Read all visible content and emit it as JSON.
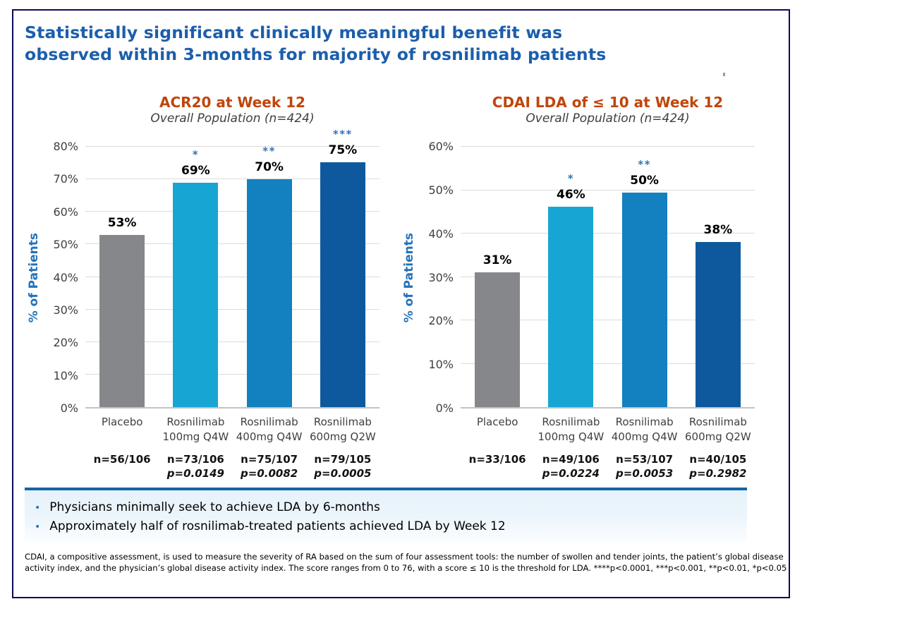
{
  "slide": {
    "title_lines": [
      "Statistically significant clinically meaningful benefit was",
      "observed within 3-months for majority of rosnilimab patients"
    ],
    "title_color": "#1B5EAC",
    "border_color": "#0B0B5C",
    "accent_divider_color": "#1565A3"
  },
  "chart_data": [
    {
      "type": "bar",
      "title": "ACR20 at Week 12",
      "subtitle": "Overall Population (n=424)",
      "ylabel": "% of Patients",
      "ylim": [
        0,
        80
      ],
      "ytick_step": 10,
      "grid": true,
      "categories": [
        "Placebo",
        "Rosnilimab\n100mg Q4W",
        "Rosnilimab\n400mg Q4W",
        "Rosnilimab\n600mg Q2W"
      ],
      "values": [
        53,
        69,
        70,
        75
      ],
      "value_labels": [
        "53%",
        "69%",
        "70%",
        "75%"
      ],
      "bar_pct_exact": [
        52.8,
        68.9,
        70.1,
        75.2
      ],
      "significance": [
        "",
        "*",
        "**",
        "***"
      ],
      "bar_colors": [
        "#85878A",
        "#17A5D3",
        "#1380BF",
        "#0E599E"
      ],
      "n_labels": [
        "n=56/106",
        "n=73/106",
        "n=75/107",
        "n=79/105"
      ],
      "p_labels": [
        "",
        "p=0.0149",
        "p=0.0082",
        "p=0.0005"
      ]
    },
    {
      "type": "bar",
      "title": "CDAI LDA of ≤ 10 at Week 12",
      "subtitle": "Overall Population (n=424)",
      "ylabel": "% of Patients",
      "ylim": [
        0,
        60
      ],
      "ytick_step": 10,
      "grid": true,
      "categories": [
        "Placebo",
        "Rosnilimab\n100mg Q4W",
        "Rosnilimab\n400mg Q4W",
        "Rosnilimab\n600mg Q2W"
      ],
      "values": [
        31,
        46,
        50,
        38
      ],
      "value_labels": [
        "31%",
        "46%",
        "50%",
        "38%"
      ],
      "bar_pct_exact": [
        31.1,
        46.2,
        49.5,
        38.1
      ],
      "significance": [
        "",
        "*",
        "**",
        ""
      ],
      "bar_colors": [
        "#85878A",
        "#17A5D3",
        "#1380BF",
        "#0E599E"
      ],
      "n_labels": [
        "n=33/106",
        "n=49/106",
        "n=53/107",
        "n=40/105"
      ],
      "p_labels": [
        "",
        "p=0.0224",
        "p=0.0053",
        "p=0.2982"
      ]
    }
  ],
  "bullets": [
    "Physicians minimally seek to achieve LDA by 6-months",
    "Approximately half of rosnilimab-treated patients achieved LDA by Week 12"
  ],
  "bullet_marker": "•",
  "footnote": "CDAI, a compositive assessment, is used to measure the severity of RA based on the sum of four assessment tools: the number of swollen and tender joints, the patient’s global disease activity index, and the physician’s global disease activity index. The score ranges from 0 to 76, with a score ≤ 10 is the threshold for LDA. ****p<0.0001, ***p<0.001, **p<0.01, *p<0.05"
}
